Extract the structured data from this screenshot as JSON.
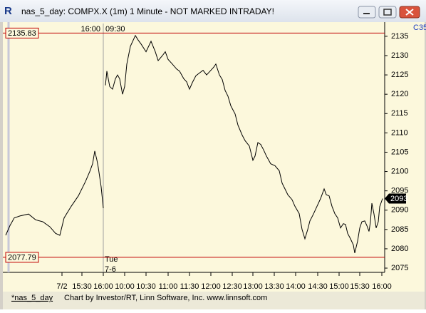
{
  "window": {
    "title": "nas_5_day: COMPX.X (1m) 1 Minute - NOT MARKED INTRADAY!",
    "corner_text": "C35"
  },
  "chart_data": {
    "type": "line",
    "color": "#000000",
    "x": [
      0,
      6,
      12,
      20,
      32,
      42,
      52,
      62,
      70,
      76,
      82,
      92,
      102,
      112,
      118,
      122,
      125,
      128,
      130,
      134,
      137,
      138,
      140,
      142,
      146,
      150,
      154,
      157,
      160,
      164,
      167,
      170,
      175,
      182,
      186,
      190,
      197,
      204,
      210,
      214,
      220,
      224,
      228,
      234,
      240,
      244,
      250,
      254,
      258,
      262,
      267,
      272,
      277,
      282,
      287,
      292,
      295,
      300,
      304,
      308,
      312,
      316,
      322,
      326,
      332,
      336,
      342,
      347,
      350,
      354,
      358,
      362,
      366,
      372,
      378,
      384,
      388,
      392,
      396,
      402,
      406,
      412,
      416,
      420,
      424,
      427,
      432,
      437,
      442,
      447,
      450,
      454,
      458,
      462,
      466,
      470,
      474,
      477,
      480,
      484,
      488,
      490,
      494,
      497,
      500,
      504,
      507,
      510,
      512,
      514,
      517,
      520,
      523,
      525,
      529
    ],
    "values": [
      2083.5,
      2086,
      2088,
      2088.5,
      2089,
      2087.5,
      2087,
      2085.7,
      2084,
      2083.5,
      2088,
      2091,
      2093.7,
      2097.4,
      2100,
      2102,
      2105.3,
      2103,
      2101,
      2096,
      2090.5,
      null,
      2122.3,
      2126,
      2122,
      2121.3,
      2124,
      2125,
      2124,
      2120,
      2122,
      2127.8,
      2132.4,
      2135.2,
      2134,
      2133,
      2131,
      2133.7,
      2131,
      2128.7,
      2130,
      2131,
      2129,
      2127.8,
      2126.5,
      2126,
      2124,
      2123.2,
      2121.3,
      2123,
      2124.8,
      2125.5,
      2126.2,
      2125,
      2126,
      2127,
      2127.8,
      2125,
      2123.8,
      2121,
      2119.5,
      2117,
      2114.9,
      2112,
      2109.4,
      2108,
      2106.6,
      2102.9,
      2104,
      2107.5,
      2107,
      2105.6,
      2104,
      2102,
      2101.5,
      2100.2,
      2097,
      2095.5,
      2094,
      2092.7,
      2091,
      2089.1,
      2085,
      2082.6,
      2085,
      2087.2,
      2089,
      2091,
      2093,
      2095.5,
      2094,
      2093.7,
      2091,
      2089.1,
      2088,
      2085.4,
      2086.5,
      2086.3,
      2084,
      2082.6,
      2081,
      2078.9,
      2082,
      2085.4,
      2087,
      2087.2,
      2086,
      2084.5,
      2087,
      2091.8,
      2089,
      2085.4,
      2087,
      2090.9,
      2093
    ],
    "xlim": [
      0,
      532
    ],
    "xticks": [
      {
        "value": 79,
        "label": "7/2"
      },
      {
        "value": 107,
        "label": "15:30"
      },
      {
        "value": 137,
        "label": "16:00"
      },
      {
        "value": 167,
        "label": "10:00"
      },
      {
        "value": 197,
        "label": "10:30"
      },
      {
        "value": 228,
        "label": "11:00"
      },
      {
        "value": 258,
        "label": "11:30"
      },
      {
        "value": 288,
        "label": "12:00"
      },
      {
        "value": 318,
        "label": "12:30"
      },
      {
        "value": 347,
        "label": "13:00"
      },
      {
        "value": 377,
        "label": "13:30"
      },
      {
        "value": 407,
        "label": "14:00"
      },
      {
        "value": 438,
        "label": "14:30"
      },
      {
        "value": 468,
        "label": "15:00"
      },
      {
        "value": 497,
        "label": "15:30"
      },
      {
        "value": 528,
        "label": "16:00"
      }
    ],
    "ylim": [
      2073.9,
      2138.3
    ],
    "yticks": [
      2075,
      2080,
      2085,
      2090,
      2095,
      2100,
      2105,
      2110,
      2115,
      2120,
      2125,
      2130,
      2135
    ],
    "reference_lines": [
      {
        "value": 2135.83,
        "color": "#c00000"
      },
      {
        "value": 2077.79,
        "color": "#c00000"
      }
    ],
    "last_value": 2093,
    "session_break": {
      "x": 137,
      "before": "16:00",
      "after": "09:30",
      "day": "Tue",
      "date": "7-6"
    }
  },
  "footer": {
    "tab": "*nas_5_day",
    "credit": "Chart by Investor/RT, Linn Software, Inc. www.linnsoft.com"
  }
}
